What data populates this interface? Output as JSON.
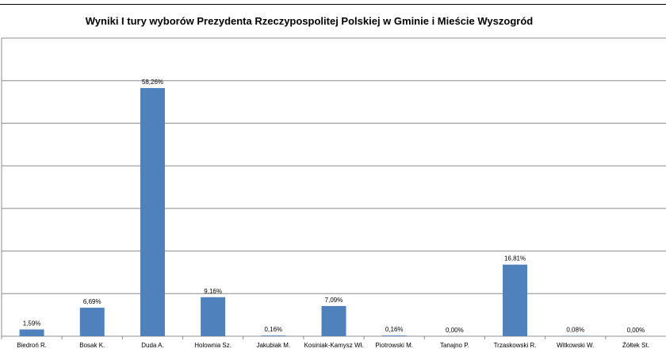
{
  "chart_data": {
    "type": "bar",
    "title": "Wyniki I tury wyborów Prezydenta Rzeczypospolitej Polskiej w Gminie i Mieście Wyszogród",
    "categories": [
      "Biedroń R.",
      "Bosak K.",
      "Duda A.",
      "Holownia Sz.",
      "Jakubiak M.",
      "Kosiniak-Kamysz Wł.",
      "Piotrowski M.",
      "Tanajno P.",
      "Trzaskowski R.",
      "Witkowski W.",
      "Żółtek St."
    ],
    "values": [
      1.59,
      6.69,
      58.26,
      9.16,
      0.16,
      7.09,
      0.16,
      0.0,
      16.81,
      0.08,
      0.0
    ],
    "data_labels": [
      "1,59%",
      "6,69%",
      "58,26%",
      "9,16%",
      "0,16%",
      "7,09%",
      "0,16%",
      "0,00%",
      "16,81%",
      "0,08%",
      "0,00%"
    ],
    "ylim": [
      0,
      70
    ],
    "grid": true,
    "legend": "none",
    "bar_color": "#4f81bd",
    "xlabel": "",
    "ylabel": ""
  }
}
